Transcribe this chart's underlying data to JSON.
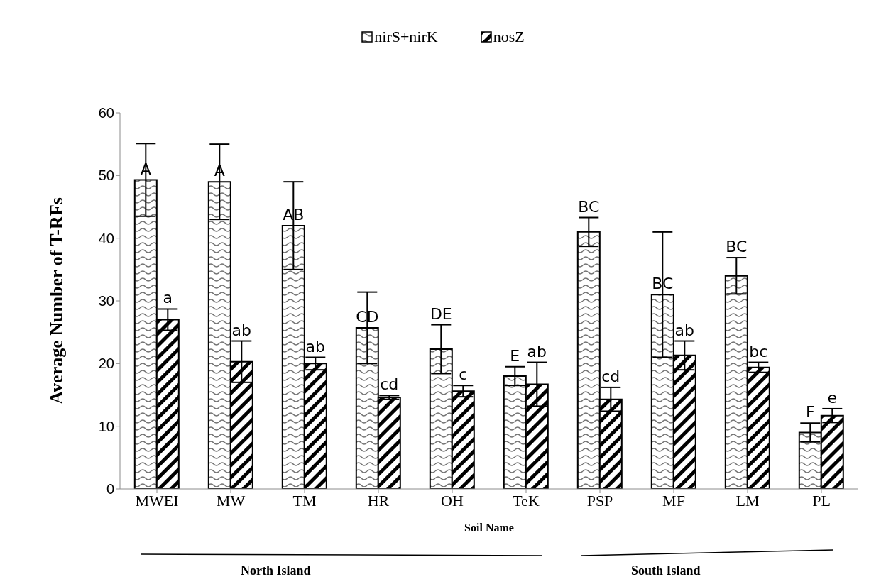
{
  "chart_data": {
    "type": "bar",
    "xlabel": "Soil Name",
    "ylabel": "Average Number of T-RFs",
    "categories": [
      "MWEI",
      "MW",
      "TM",
      "HR",
      "OH",
      "TeK",
      "PSP",
      "MF",
      "LM",
      "PL"
    ],
    "series": [
      {
        "name": "nirS+nirK",
        "color": "#000000",
        "values": [
          49.3,
          49.0,
          42.0,
          25.7,
          22.3,
          18.0,
          41.0,
          31.0,
          34.0,
          9.0
        ],
        "errors": [
          5.8,
          6.0,
          7.0,
          5.7,
          3.9,
          1.5,
          2.3,
          10.0,
          2.9,
          1.5
        ],
        "value_labels": [
          "A",
          "A",
          "AB",
          "CD",
          "DE",
          "E",
          "BC",
          "BC",
          "BC",
          "F"
        ]
      },
      {
        "name": "nosZ",
        "color": "#000000",
        "values": [
          27.0,
          20.3,
          20.0,
          14.6,
          15.6,
          16.7,
          14.3,
          21.3,
          19.4,
          11.7
        ],
        "errors": [
          1.7,
          3.3,
          1.0,
          0.3,
          0.9,
          3.5,
          1.9,
          2.3,
          0.8,
          1.1
        ],
        "value_labels": [
          "a",
          "ab",
          "ab",
          "cd",
          "c",
          "ab",
          "cd",
          "ab",
          "bc",
          "e"
        ]
      }
    ],
    "ylim": [
      0,
      60
    ],
    "yticks": [
      0,
      10,
      20,
      30,
      40,
      50,
      60
    ],
    "grid": false,
    "legend": "top",
    "annotations": [
      "North Island",
      "South Island"
    ]
  }
}
